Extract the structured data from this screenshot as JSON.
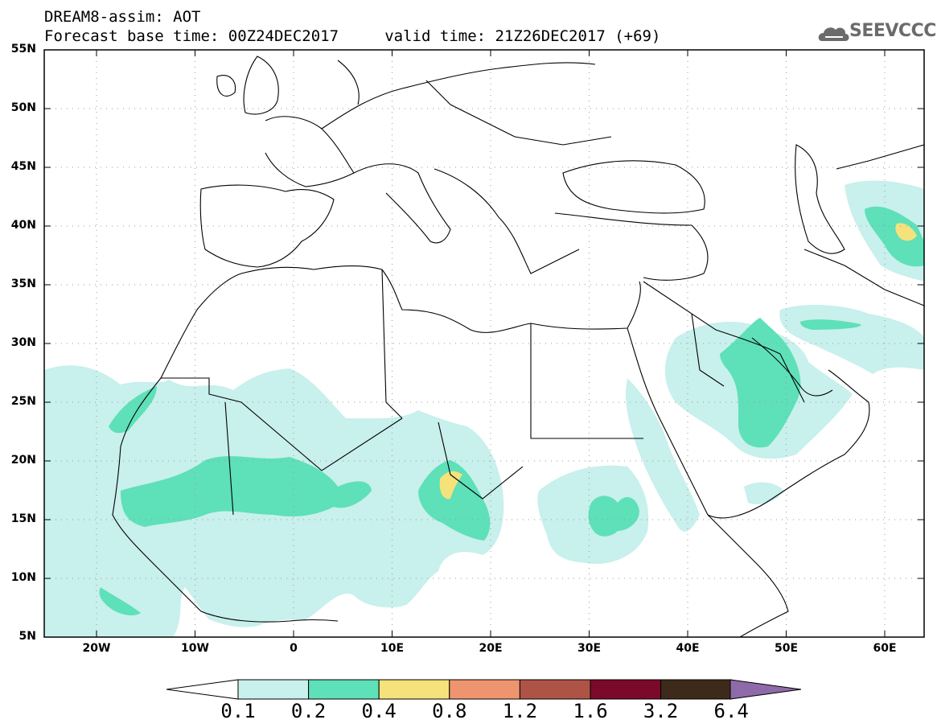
{
  "header": {
    "line1": "DREAM8-assim: AOT",
    "line2": "Forecast base time: 00Z24DEC2017     valid time: 21Z26DEC2017 (+69)"
  },
  "logo": {
    "text": "SEEVCCC",
    "icon": "cloud-icon"
  },
  "axes": {
    "lat_labels": [
      "55N",
      "50N",
      "45N",
      "40N",
      "35N",
      "30N",
      "25N",
      "20N",
      "15N",
      "10N",
      "5N"
    ],
    "lon_labels": [
      "20W",
      "10W",
      "0",
      "10E",
      "20E",
      "30E",
      "40E",
      "50E",
      "60E"
    ]
  },
  "colorbar": {
    "labels": [
      "0.1",
      "0.2",
      "0.4",
      "0.8",
      "1.2",
      "1.6",
      "3.2",
      "6.4"
    ],
    "colors": [
      "#c8f0ec",
      "#5ee0b8",
      "#f5e27a",
      "#ee9570",
      "#ad5447",
      "#7b0a2a",
      "#3e2a1a",
      "#8f6aa8"
    ],
    "under_color": "#ffffff"
  },
  "map_colors": {
    "level1": "#c8f0ec",
    "level2": "#5ee0b8",
    "level3": "#f5e27a",
    "coast": "#000000",
    "grid": "#9a9a9a"
  }
}
